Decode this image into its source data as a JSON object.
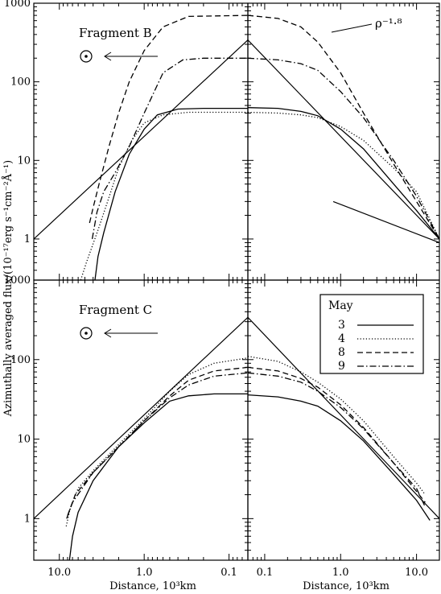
{
  "chart_data": {
    "type": "line",
    "ylabel": "Azimuthally averaged flux/(10⁻¹⁷erg s⁻¹cm⁻²Å⁻¹)",
    "xlabel_left": "Distance, 10³km",
    "xlabel_right": "Distance, 10³km",
    "y_scale": "log",
    "x_scale": "log",
    "ylim": [
      0.3,
      1000
    ],
    "xlim_left": [
      20,
      0.06
    ],
    "xlim_right": [
      0.06,
      20
    ],
    "y_ticks": [
      "1",
      "10",
      "100",
      "1000"
    ],
    "x_ticks_left": [
      "10.0",
      "1.0",
      "0.1"
    ],
    "x_ticks_right": [
      "0.1",
      "1.0",
      "10.0"
    ],
    "slope_annotation": "ρ⁻¹·⁸",
    "legend": {
      "title": "May",
      "entries": [
        {
          "label": "3",
          "style": "solid"
        },
        {
          "label": "4",
          "style": "dotted"
        },
        {
          "label": "8",
          "style": "dashed"
        },
        {
          "label": "9",
          "style": "dashdot"
        }
      ]
    },
    "panels": [
      {
        "label": "Fragment B",
        "sun_arrow": true,
        "reference_lines": [
          {
            "name": "",
            "left": [
              [
                20,
                1
              ],
              [
                0.06,
                340
              ]
            ],
            "right": [
              [
                0.06,
                340
              ],
              [
                20,
                1
              ]
            ]
          },
          {
            "name": "ρ⁻¹·⁸",
            "right": [
              [
                0.8,
                3
              ],
              [
                20,
                0.9
              ]
            ]
          }
        ],
        "series": [
          {
            "name": "3",
            "style": "solid",
            "left": [
              [
                3.8,
                0.3
              ],
              [
                3.5,
                0.6
              ],
              [
                3.0,
                1.2
              ],
              [
                2.2,
                4
              ],
              [
                1.5,
                12
              ],
              [
                1.0,
                25
              ],
              [
                0.7,
                38
              ],
              [
                0.4,
                45
              ],
              [
                0.2,
                46
              ],
              [
                0.06,
                46
              ]
            ],
            "right": [
              [
                0.06,
                47
              ],
              [
                0.15,
                46
              ],
              [
                0.3,
                42
              ],
              [
                0.5,
                37
              ],
              [
                1.0,
                25
              ],
              [
                2.0,
                14
              ],
              [
                5.0,
                5
              ],
              [
                10.0,
                2.3
              ],
              [
                20,
                1
              ]
            ]
          },
          {
            "name": "4",
            "style": "dotted",
            "left": [
              [
                5.6,
                0.3
              ],
              [
                4.8,
                0.5
              ],
              [
                3.5,
                1.3
              ],
              [
                2.7,
                3
              ],
              [
                2.0,
                8
              ],
              [
                1.4,
                18
              ],
              [
                1.0,
                30
              ],
              [
                0.6,
                38
              ],
              [
                0.3,
                41
              ],
              [
                0.06,
                41
              ]
            ],
            "right": [
              [
                0.06,
                41
              ],
              [
                0.15,
                40
              ],
              [
                0.3,
                38
              ],
              [
                0.5,
                35
              ],
              [
                1.0,
                27
              ],
              [
                2.0,
                18
              ],
              [
                5.0,
                8
              ],
              [
                10.0,
                4
              ],
              [
                20,
                1
              ]
            ]
          },
          {
            "name": "8",
            "style": "dashed",
            "left": [
              [
                4.4,
                1.6
              ],
              [
                4.0,
                2.5
              ],
              [
                3.4,
                5
              ],
              [
                2.6,
                15
              ],
              [
                2.0,
                40
              ],
              [
                1.5,
                100
              ],
              [
                1.0,
                250
              ],
              [
                0.6,
                500
              ],
              [
                0.3,
                680
              ],
              [
                0.06,
                700
              ]
            ],
            "right": [
              [
                0.06,
                700
              ],
              [
                0.15,
                640
              ],
              [
                0.3,
                500
              ],
              [
                0.5,
                320
              ],
              [
                1.0,
                130
              ],
              [
                2.0,
                40
              ],
              [
                5.0,
                9
              ],
              [
                10.0,
                3
              ],
              [
                20,
                1
              ]
            ]
          },
          {
            "name": "9",
            "style": "dashdot",
            "left": [
              [
                4.1,
                1
              ],
              [
                3.6,
                2.2
              ],
              [
                3.0,
                4
              ],
              [
                2.2,
                7
              ],
              [
                1.5,
                15
              ],
              [
                1.0,
                40
              ],
              [
                0.6,
                130
              ],
              [
                0.35,
                190
              ],
              [
                0.2,
                200
              ],
              [
                0.06,
                200
              ]
            ],
            "right": [
              [
                0.06,
                200
              ],
              [
                0.15,
                190
              ],
              [
                0.3,
                170
              ],
              [
                0.5,
                140
              ],
              [
                1.0,
                75
              ],
              [
                2.0,
                35
              ],
              [
                5.0,
                10
              ],
              [
                10.0,
                3.5
              ],
              [
                20,
                1
              ]
            ]
          }
        ]
      },
      {
        "label": "Fragment C",
        "sun_arrow": true,
        "reference_lines": [
          {
            "name": "",
            "left": [
              [
                20,
                1
              ],
              [
                0.06,
                340
              ]
            ],
            "right": [
              [
                0.06,
                340
              ],
              [
                20,
                1
              ]
            ]
          }
        ],
        "series": [
          {
            "name": "3",
            "style": "solid",
            "left": [
              [
                7.6,
                0.3
              ],
              [
                7.0,
                0.6
              ],
              [
                6.0,
                1.2
              ],
              [
                4.0,
                3
              ],
              [
                2.0,
                8
              ],
              [
                1.0,
                16
              ],
              [
                0.5,
                30
              ],
              [
                0.3,
                35
              ],
              [
                0.15,
                37
              ],
              [
                0.06,
                37
              ]
            ],
            "right": [
              [
                0.06,
                36
              ],
              [
                0.15,
                34
              ],
              [
                0.3,
                30
              ],
              [
                0.5,
                26
              ],
              [
                1.0,
                17
              ],
              [
                2.0,
                9.5
              ],
              [
                5.0,
                3.6
              ],
              [
                10.0,
                1.7
              ],
              [
                15.0,
                0.95
              ]
            ]
          },
          {
            "name": "4",
            "style": "dotted",
            "left": [
              [
                8.3,
                0.8
              ],
              [
                7.5,
                1.3
              ],
              [
                6.0,
                2.4
              ],
              [
                4.0,
                4
              ],
              [
                2.0,
                8.5
              ],
              [
                1.0,
                18
              ],
              [
                0.5,
                40
              ],
              [
                0.3,
                65
              ],
              [
                0.15,
                90
              ],
              [
                0.06,
                105
              ]
            ],
            "right": [
              [
                0.06,
                110
              ],
              [
                0.15,
                95
              ],
              [
                0.3,
                70
              ],
              [
                0.5,
                52
              ],
              [
                1.0,
                32
              ],
              [
                2.0,
                17
              ],
              [
                5.0,
                6
              ],
              [
                10.0,
                2.8
              ],
              [
                13.0,
                2
              ]
            ]
          },
          {
            "name": "8",
            "style": "dashed",
            "left": [
              [
                8.0,
                1.1
              ],
              [
                6.5,
                2
              ],
              [
                4.0,
                3.8
              ],
              [
                2.0,
                8
              ],
              [
                1.0,
                17
              ],
              [
                0.5,
                35
              ],
              [
                0.3,
                55
              ],
              [
                0.15,
                72
              ],
              [
                0.06,
                80
              ]
            ],
            "right": [
              [
                0.06,
                80
              ],
              [
                0.15,
                72
              ],
              [
                0.3,
                58
              ],
              [
                0.5,
                45
              ],
              [
                1.0,
                27
              ],
              [
                2.0,
                14
              ],
              [
                5.0,
                5
              ],
              [
                10.0,
                2.2
              ],
              [
                13.0,
                1.6
              ]
            ]
          },
          {
            "name": "9",
            "style": "dashdot",
            "left": [
              [
                8.2,
                1
              ],
              [
                7.0,
                1.6
              ],
              [
                4.0,
                3.8
              ],
              [
                2.0,
                8
              ],
              [
                1.0,
                17
              ],
              [
                0.5,
                33
              ],
              [
                0.3,
                48
              ],
              [
                0.15,
                62
              ],
              [
                0.06,
                68
              ]
            ],
            "right": [
              [
                0.06,
                68
              ],
              [
                0.15,
                62
              ],
              [
                0.3,
                52
              ],
              [
                0.5,
                40
              ],
              [
                1.0,
                25
              ],
              [
                2.0,
                13.5
              ],
              [
                5.0,
                5
              ],
              [
                10.0,
                2.4
              ],
              [
                13.0,
                1.4
              ]
            ]
          }
        ]
      }
    ]
  }
}
